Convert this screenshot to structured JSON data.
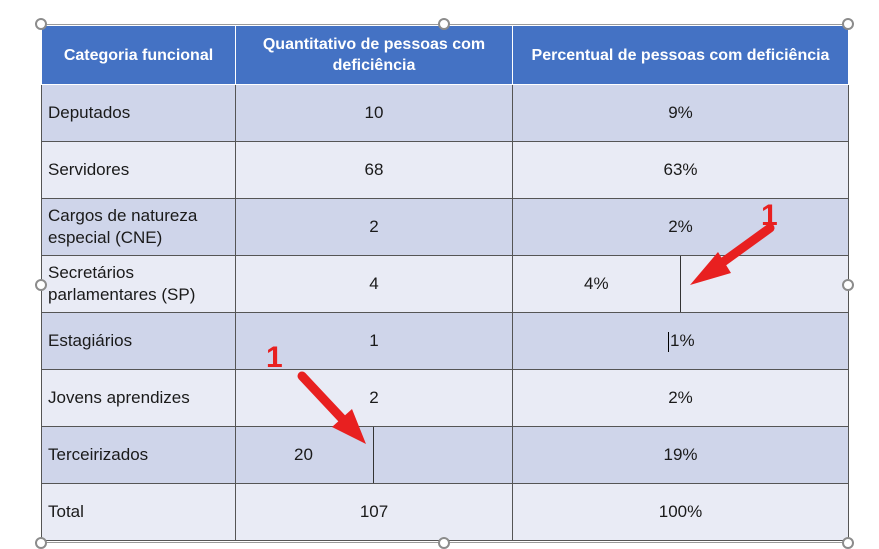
{
  "table": {
    "headers": [
      "Categoria funcional",
      "Quantitativo de pessoas com deficiência",
      "Percentual de pessoas com deficiência"
    ],
    "rows": [
      {
        "categoria": "Deputados",
        "quantitativo": "10",
        "percentual": "9%"
      },
      {
        "categoria": "Servidores",
        "quantitativo": "68",
        "percentual": "63%"
      },
      {
        "categoria": "Cargos de natureza especial (CNE)",
        "quantitativo": "2",
        "percentual": "2%"
      },
      {
        "categoria": "Secretários parlamentares (SP)",
        "quantitativo": "4",
        "percentual": "4%"
      },
      {
        "categoria": "Estagiários",
        "quantitativo": "1",
        "percentual": "1%"
      },
      {
        "categoria": "Jovens aprendizes",
        "quantitativo": "2",
        "percentual": "2%"
      },
      {
        "categoria": "Terceirizados",
        "quantitativo": "20",
        "percentual": "19%"
      },
      {
        "categoria": "Total",
        "quantitativo": "107",
        "percentual": "100%"
      }
    ]
  },
  "annotations": {
    "marker_top": "1",
    "marker_bottom": "1",
    "arrow_color": "#e82020"
  },
  "colors": {
    "header_bg": "#4472c4",
    "row_odd": "#cfd5ea",
    "row_even": "#e9ebf5"
  }
}
